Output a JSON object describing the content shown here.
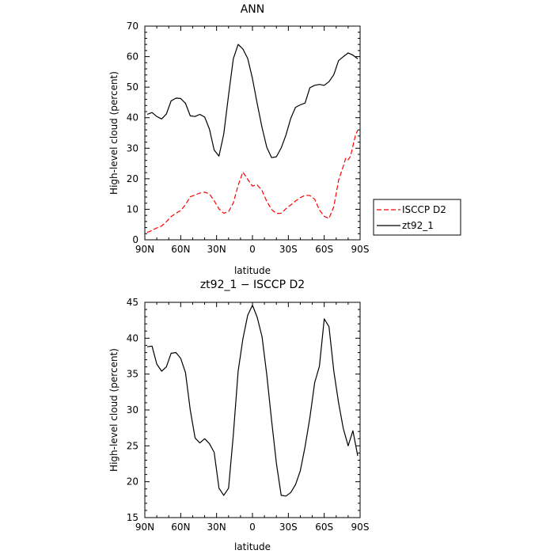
{
  "chart_data": [
    {
      "type": "line",
      "title": "ANN",
      "xlabel": "latitude",
      "ylabel": "High-level cloud (percent)",
      "xlim": [
        90,
        -90
      ],
      "ylim": [
        0,
        70
      ],
      "x_tick_values": [
        90,
        60,
        30,
        0,
        -30,
        -60,
        -90
      ],
      "x_tick_labels": [
        "90N",
        "60N",
        "30N",
        "0",
        "30S",
        "60S",
        "90S"
      ],
      "y_ticks": [
        0,
        10,
        20,
        30,
        40,
        50,
        60,
        70
      ],
      "legend": {
        "position": "right"
      },
      "series": [
        {
          "name": "ISCCP D2",
          "color": "#ff0000",
          "dash": "dashed",
          "x": [
            88,
            84,
            80,
            76,
            72,
            68,
            64,
            60,
            56,
            52,
            48,
            44,
            40,
            36,
            32,
            28,
            24,
            20,
            16,
            12,
            8,
            4,
            0,
            -4,
            -8,
            -12,
            -16,
            -20,
            -24,
            -28,
            -32,
            -36,
            -40,
            -44,
            -48,
            -52,
            -56,
            -60,
            -64,
            -68,
            -72,
            -76,
            -78,
            -80,
            -82,
            -84,
            -86,
            -88
          ],
          "y": [
            2.4,
            3.1,
            3.9,
            4.5,
            5.9,
            7.6,
            8.7,
            9.6,
            11.5,
            14.1,
            14.7,
            15.3,
            15.6,
            15.0,
            12.8,
            10.1,
            8.7,
            9.2,
            12.1,
            17.8,
            22.2,
            19.8,
            17.6,
            18.0,
            16.1,
            12.6,
            9.9,
            8.6,
            8.7,
            10.2,
            11.4,
            12.7,
            13.8,
            14.6,
            14.5,
            13.3,
            9.8,
            7.7,
            7.0,
            10.9,
            19.5,
            24.1,
            26.8,
            26.2,
            27.4,
            30.7,
            34.1,
            35.9
          ]
        },
        {
          "name": "zt92_1",
          "color": "#000000",
          "dash": "solid",
          "x": [
            88,
            84,
            80,
            76,
            72,
            68,
            64,
            60,
            56,
            52,
            48,
            44,
            40,
            36,
            32,
            28,
            24,
            20,
            16,
            12,
            8,
            4,
            0,
            -4,
            -8,
            -12,
            -16,
            -20,
            -24,
            -28,
            -32,
            -36,
            -40,
            -44,
            -48,
            -52,
            -56,
            -60,
            -64,
            -68,
            -72,
            -76,
            -80,
            -84,
            -88
          ],
          "y": [
            41.1,
            41.7,
            40.4,
            39.6,
            41.2,
            45.5,
            46.4,
            46.3,
            44.7,
            40.6,
            40.4,
            41.1,
            40.2,
            36.3,
            29.4,
            27.4,
            34.6,
            47.4,
            59.3,
            64.0,
            62.5,
            59.4,
            52.8,
            44.6,
            36.8,
            30.3,
            26.9,
            27.2,
            30.1,
            34.3,
            39.8,
            43.4,
            44.2,
            44.8,
            49.8,
            50.6,
            50.9,
            50.6,
            51.8,
            54.1,
            58.7,
            60.0,
            61.2,
            60.5,
            59.3
          ]
        }
      ]
    },
    {
      "type": "line",
      "title": "zt92_1 − ISCCP D2",
      "xlabel": "latitude",
      "ylabel": "High-level cloud (percent)",
      "xlim": [
        90,
        -90
      ],
      "ylim": [
        15,
        45
      ],
      "x_tick_values": [
        90,
        60,
        30,
        0,
        -30,
        -60,
        -90
      ],
      "x_tick_labels": [
        "90N",
        "60N",
        "30N",
        "0",
        "30S",
        "60S",
        "90S"
      ],
      "y_ticks": [
        15,
        20,
        25,
        30,
        35,
        40,
        45
      ],
      "series": [
        {
          "name": "",
          "color": "#000000",
          "dash": "solid",
          "x": [
            88,
            84,
            80,
            76,
            72,
            68,
            64,
            60,
            56,
            52,
            48,
            44,
            40,
            36,
            32,
            28,
            24,
            20,
            16,
            12,
            8,
            4,
            0,
            -4,
            -8,
            -12,
            -16,
            -20,
            -24,
            -28,
            -32,
            -36,
            -40,
            -44,
            -48,
            -52,
            -56,
            -60,
            -64,
            -68,
            -72,
            -76,
            -80,
            -84,
            -88
          ],
          "y": [
            38.8,
            38.9,
            36.4,
            35.4,
            36.0,
            37.9,
            38.0,
            37.2,
            35.2,
            30.0,
            26.1,
            25.4,
            26.0,
            25.3,
            24.1,
            19.1,
            18.1,
            19.1,
            26.5,
            35.4,
            39.9,
            43.2,
            44.6,
            42.9,
            40.2,
            34.9,
            28.5,
            22.6,
            18.1,
            18.0,
            18.5,
            19.6,
            21.5,
            24.9,
            28.9,
            33.8,
            36.1,
            42.7,
            41.6,
            35.4,
            31.0,
            27.4,
            25.0,
            27.1,
            23.6
          ]
        }
      ]
    }
  ]
}
